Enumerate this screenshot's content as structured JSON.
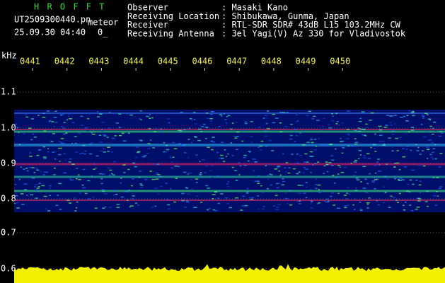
{
  "header": {
    "app": "H R O F F T",
    "file": "UT2509300440.pn",
    "mode": "meteor",
    "datetime": "25.09.30 04:40",
    "counter": "0_",
    "fields": [
      {
        "label": "Observer",
        "value": ": Masaki Kano"
      },
      {
        "label": "Receiving Location",
        "value": ": Shibukawa, Gunma, Japan"
      },
      {
        "label": "Receiver",
        "value": ": RTL-SDR SDR# 43dB L15 103.2MHz CW"
      },
      {
        "label": "Receiving Antenna",
        "value": ": 3el Yagi(V) Az 330 for Vladivostok"
      }
    ]
  },
  "axis": {
    "unit": "kHz",
    "times": [
      "0441",
      "0442",
      "0443",
      "0444",
      "0445",
      "0446",
      "0447",
      "0448",
      "0449",
      "0450"
    ],
    "freqs": [
      "1.1",
      "1.0",
      "0.9",
      "0.8",
      "0.7",
      "0.6"
    ]
  }
}
